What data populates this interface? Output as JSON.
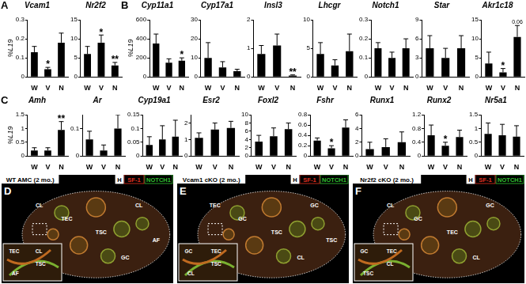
{
  "chart_data": [
    {
      "type": "bar",
      "panel": "A",
      "title": "Vcam1",
      "y_label": "%L19",
      "categories": [
        "W",
        "V",
        "N"
      ],
      "values": [
        0.13,
        0.04,
        0.18
      ],
      "errors": [
        0.03,
        0.01,
        0.05
      ],
      "annotations": [
        {
          "category": "V",
          "text": "*"
        }
      ],
      "color": "#000000",
      "ylim": [
        0,
        0.3
      ],
      "yticks": [
        0,
        0.1,
        0.2,
        0.3
      ],
      "grid": false
    },
    {
      "type": "bar",
      "title": "Nr2f2",
      "categories": [
        "W",
        "V",
        "N"
      ],
      "values": [
        6,
        9,
        3
      ],
      "errors": [
        2,
        2,
        0.8
      ],
      "annotations": [
        {
          "category": "V",
          "text": "*"
        },
        {
          "category": "N",
          "text": "**"
        }
      ],
      "color": "#000000",
      "ylim": [
        0,
        15
      ],
      "yticks": [
        0,
        5,
        10,
        15
      ],
      "grid": false
    },
    {
      "type": "bar",
      "panel": "B",
      "title": "Cyp11a1",
      "y_label": "%L19",
      "categories": [
        "W",
        "V",
        "N"
      ],
      "values": [
        350,
        150,
        170
      ],
      "errors": [
        100,
        40,
        30
      ],
      "annotations": [
        {
          "category": "N",
          "text": "*"
        }
      ],
      "color": "#000000",
      "ylim": [
        0,
        600
      ],
      "yticks": [
        0,
        200,
        400,
        600
      ],
      "grid": false
    },
    {
      "type": "bar",
      "title": "Cyp17a1",
      "categories": [
        "W",
        "V",
        "N"
      ],
      "values": [
        10,
        5,
        3
      ],
      "errors": [
        8,
        3,
        1
      ],
      "annotations": [],
      "color": "#000000",
      "ylim": [
        0,
        30
      ],
      "yticks": [
        0,
        10,
        20,
        30
      ],
      "grid": false
    },
    {
      "type": "bar",
      "title": "Insl3",
      "categories": [
        "W",
        "V",
        "N"
      ],
      "values": [
        0.8,
        1.1,
        0.05
      ],
      "errors": [
        0.3,
        0.4,
        0.02
      ],
      "annotations": [
        {
          "category": "N",
          "text": "**"
        }
      ],
      "color": "#000000",
      "ylim": [
        0,
        2
      ],
      "yticks": [
        0,
        1,
        2
      ],
      "grid": false
    },
    {
      "type": "bar",
      "title": "Lhcgr",
      "categories": [
        "W",
        "V",
        "N"
      ],
      "values": [
        4,
        2,
        4.5
      ],
      "errors": [
        2,
        1,
        3
      ],
      "annotations": [],
      "color": "#000000",
      "ylim": [
        0,
        10
      ],
      "yticks": [
        0,
        5,
        10
      ],
      "grid": false
    },
    {
      "type": "bar",
      "title": "Notch1",
      "categories": [
        "W",
        "V",
        "N"
      ],
      "values": [
        0.15,
        0.1,
        0.15
      ],
      "errors": [
        0.03,
        0.03,
        0.05
      ],
      "annotations": [],
      "color": "#000000",
      "ylim": [
        0,
        0.3
      ],
      "yticks": [
        0,
        0.1,
        0.2,
        0.3
      ],
      "grid": false
    },
    {
      "type": "bar",
      "title": "Star",
      "categories": [
        "W",
        "V",
        "N"
      ],
      "values": [
        4.5,
        3,
        4.5
      ],
      "errors": [
        2,
        1.5,
        2
      ],
      "annotations": [],
      "color": "#000000",
      "ylim": [
        0,
        9
      ],
      "yticks": [
        0,
        3,
        6,
        9
      ],
      "grid": false
    },
    {
      "type": "bar",
      "title": "Akr1c18",
      "categories": [
        "W",
        "V",
        "N"
      ],
      "values": [
        3.5,
        1.2,
        10.5
      ],
      "errors": [
        3,
        1,
        3
      ],
      "annotations": [
        {
          "category": "V",
          "text": "*"
        },
        {
          "category": "N",
          "text": "0.06"
        }
      ],
      "color": "#000000",
      "ylim": [
        0,
        15
      ],
      "yticks": [
        0,
        5,
        10,
        15
      ],
      "grid": false
    },
    {
      "type": "bar",
      "panel": "C",
      "title": "Amh",
      "y_label": "%L19",
      "categories": [
        "W",
        "V",
        "N"
      ],
      "values": [
        0.2,
        0.2,
        0.95
      ],
      "errors": [
        0.1,
        0.1,
        0.3
      ],
      "annotations": [
        {
          "category": "N",
          "text": "**"
        }
      ],
      "color": "#000000",
      "ylim": [
        0,
        1.5
      ],
      "yticks": [
        0,
        0.5,
        1,
        1.5
      ],
      "grid": false
    },
    {
      "type": "bar",
      "title": "Ar",
      "categories": [
        "W",
        "V",
        "N"
      ],
      "values": [
        0.06,
        0.02,
        0.1
      ],
      "errors": [
        0.03,
        0.02,
        0.05
      ],
      "annotations": [],
      "color": "#000000",
      "ylim": [
        0,
        0.15
      ],
      "yticks": [
        0,
        0.1
      ],
      "grid": false
    },
    {
      "type": "bar",
      "title": "Cyp19a1",
      "categories": [
        "W",
        "V",
        "N"
      ],
      "values": [
        0.04,
        0.06,
        0.07
      ],
      "errors": [
        0.03,
        0.05,
        0.06
      ],
      "annotations": [],
      "color": "#000000",
      "ylim": [
        0,
        0.15
      ],
      "yticks": [
        0,
        0.05,
        0.1,
        0.15
      ],
      "grid": false
    },
    {
      "type": "bar",
      "title": "Esr2",
      "categories": [
        "W",
        "V",
        "N"
      ],
      "values": [
        1.1,
        1.6,
        1.7
      ],
      "errors": [
        0.3,
        0.4,
        0.4
      ],
      "annotations": [],
      "color": "#000000",
      "ylim": [
        0,
        2.5
      ],
      "yticks": [
        0,
        1,
        2
      ],
      "grid": false
    },
    {
      "type": "bar",
      "title": "Foxl2",
      "categories": [
        "W",
        "V",
        "N"
      ],
      "values": [
        3.5,
        4.8,
        6.5
      ],
      "errors": [
        1.5,
        2,
        1.5
      ],
      "annotations": [],
      "color": "#000000",
      "ylim": [
        0,
        10
      ],
      "yticks": [
        0,
        2,
        4,
        6,
        8,
        10
      ],
      "grid": false
    },
    {
      "type": "bar",
      "title": "Fshr",
      "categories": [
        "W",
        "V",
        "N"
      ],
      "values": [
        0.3,
        0.15,
        0.55
      ],
      "errors": [
        0.05,
        0.05,
        0.15
      ],
      "annotations": [
        {
          "category": "V",
          "text": "*"
        }
      ],
      "color": "#000000",
      "ylim": [
        0,
        0.8
      ],
      "yticks": [
        0,
        0.2,
        0.4,
        0.6,
        0.8
      ],
      "grid": false
    },
    {
      "type": "bar",
      "title": "Runx1",
      "categories": [
        "W",
        "V",
        "N"
      ],
      "values": [
        1,
        1.3,
        2
      ],
      "errors": [
        1,
        1.2,
        1.5
      ],
      "annotations": [],
      "color": "#000000",
      "ylim": [
        0,
        6
      ],
      "yticks": [
        0,
        2,
        4,
        6
      ],
      "grid": false
    },
    {
      "type": "bar",
      "title": "Runx2",
      "categories": [
        "W",
        "V",
        "N"
      ],
      "values": [
        0.6,
        0.3,
        0.55
      ],
      "errors": [
        0.3,
        0.1,
        0.2
      ],
      "annotations": [
        {
          "category": "V",
          "text": "*"
        }
      ],
      "color": "#000000",
      "ylim": [
        0,
        1.2
      ],
      "yticks": [
        0,
        0.4,
        0.8,
        1.2
      ],
      "grid": false
    },
    {
      "type": "bar",
      "title": "Nr5a1",
      "categories": [
        "W",
        "V",
        "N"
      ],
      "values": [
        0.8,
        0.75,
        0.7
      ],
      "errors": [
        0.4,
        0.4,
        0.4
      ],
      "annotations": [],
      "color": "#000000",
      "ylim": [
        0,
        1.5
      ],
      "yticks": [
        0,
        0.5,
        1,
        1.5
      ],
      "grid": false
    }
  ],
  "images": [
    {
      "panel": "D",
      "title": "WT AMC (2 mo.)",
      "stains": [
        {
          "label": "H",
          "color": "#ffffff"
        },
        {
          "label": "SF-1",
          "color": "#e03020"
        },
        {
          "label": "NOTCH1",
          "color": "#30c030"
        }
      ],
      "labels": [
        "CL",
        "CL",
        "TSC",
        "TEC",
        "GC",
        "AF"
      ],
      "inset_labels": [
        "TEC",
        "CL",
        "TSC",
        "AF"
      ]
    },
    {
      "panel": "E",
      "title": "Vcam1 cKO (2 mo.)",
      "stains": [
        {
          "label": "H",
          "color": "#ffffff"
        },
        {
          "label": "SF-1",
          "color": "#e03020"
        },
        {
          "label": "NOTCH1",
          "color": "#30c030"
        }
      ],
      "labels": [
        "TEC",
        "GC",
        "TSC",
        "GC",
        "CL",
        "TSC"
      ],
      "inset_labels": [
        "GC",
        "TEC",
        "TSC",
        "CL"
      ]
    },
    {
      "panel": "F",
      "title": "Nr2f2 cKO (2 mo.)",
      "stains": [
        {
          "label": "H",
          "color": "#ffffff"
        },
        {
          "label": "SF-1",
          "color": "#e03020"
        },
        {
          "label": "NOTCH1",
          "color": "#30c030"
        }
      ],
      "labels": [
        "CL",
        "GC",
        "TEC",
        "GC",
        "CL"
      ],
      "inset_labels": [
        "GC",
        "TEC",
        "CL",
        "TSC"
      ]
    }
  ]
}
